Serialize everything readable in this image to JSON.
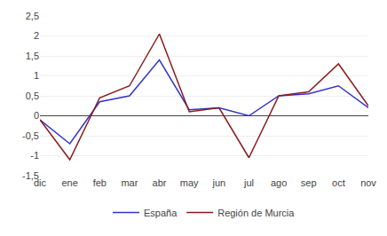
{
  "chart_data": {
    "type": "line",
    "categories": [
      "dic",
      "ene",
      "feb",
      "mar",
      "abr",
      "may",
      "jun",
      "jul",
      "ago",
      "sep",
      "oct",
      "nov"
    ],
    "series": [
      {
        "name": "España",
        "color": "#3333cc",
        "values": [
          -0.1,
          -0.7,
          0.35,
          0.5,
          1.4,
          0.15,
          0.2,
          0.0,
          0.5,
          0.55,
          0.75,
          0.2
        ]
      },
      {
        "name": "Región de Murcia",
        "color": "#8b1a1a",
        "values": [
          -0.1,
          -1.1,
          0.45,
          0.75,
          2.05,
          0.1,
          0.2,
          -1.05,
          0.5,
          0.6,
          1.3,
          0.25
        ]
      }
    ],
    "ylim": [
      -1.5,
      2.5
    ],
    "yticks": [
      {
        "value": -1.5,
        "label": "-1,5"
      },
      -1,
      {
        "value": -0.5,
        "label": "-0,5"
      },
      0,
      {
        "value": 0.5,
        "label": "0,5"
      },
      1,
      {
        "value": 1.5,
        "label": "1,5"
      },
      2,
      {
        "value": 2.5,
        "label": "2,5"
      }
    ],
    "grid": true,
    "legend": "bottom"
  }
}
